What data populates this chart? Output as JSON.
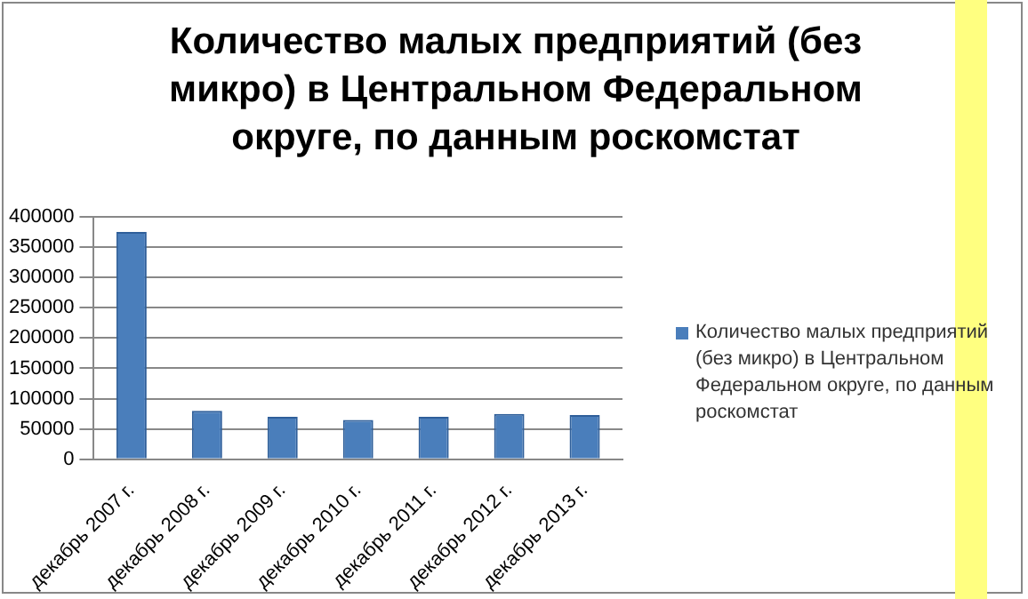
{
  "chart_data": {
    "type": "bar",
    "title": "Количество малых предприятий (без микро) в Центральном Федеральном округе, по данным роскомстат",
    "categories": [
      "декабрь 2007 г.",
      "декабрь 2008 г.",
      "декабрь 2009 г.",
      "декабрь 2010 г.",
      "декабрь 2011 г.",
      "декабрь 2012 г.",
      "декабрь 2013 г."
    ],
    "series": [
      {
        "name": "Количество малых предприятий (без микро) в Центральном Федеральном округе, по данным роскомстат",
        "color": "#4a7ebb",
        "values": [
          375000,
          80000,
          70000,
          65000,
          70000,
          75000,
          73000
        ]
      }
    ],
    "ylim": [
      0,
      400000
    ],
    "yticks": [
      0,
      50000,
      100000,
      150000,
      200000,
      250000,
      300000,
      350000,
      400000
    ],
    "grid": "y",
    "legend": "right"
  }
}
